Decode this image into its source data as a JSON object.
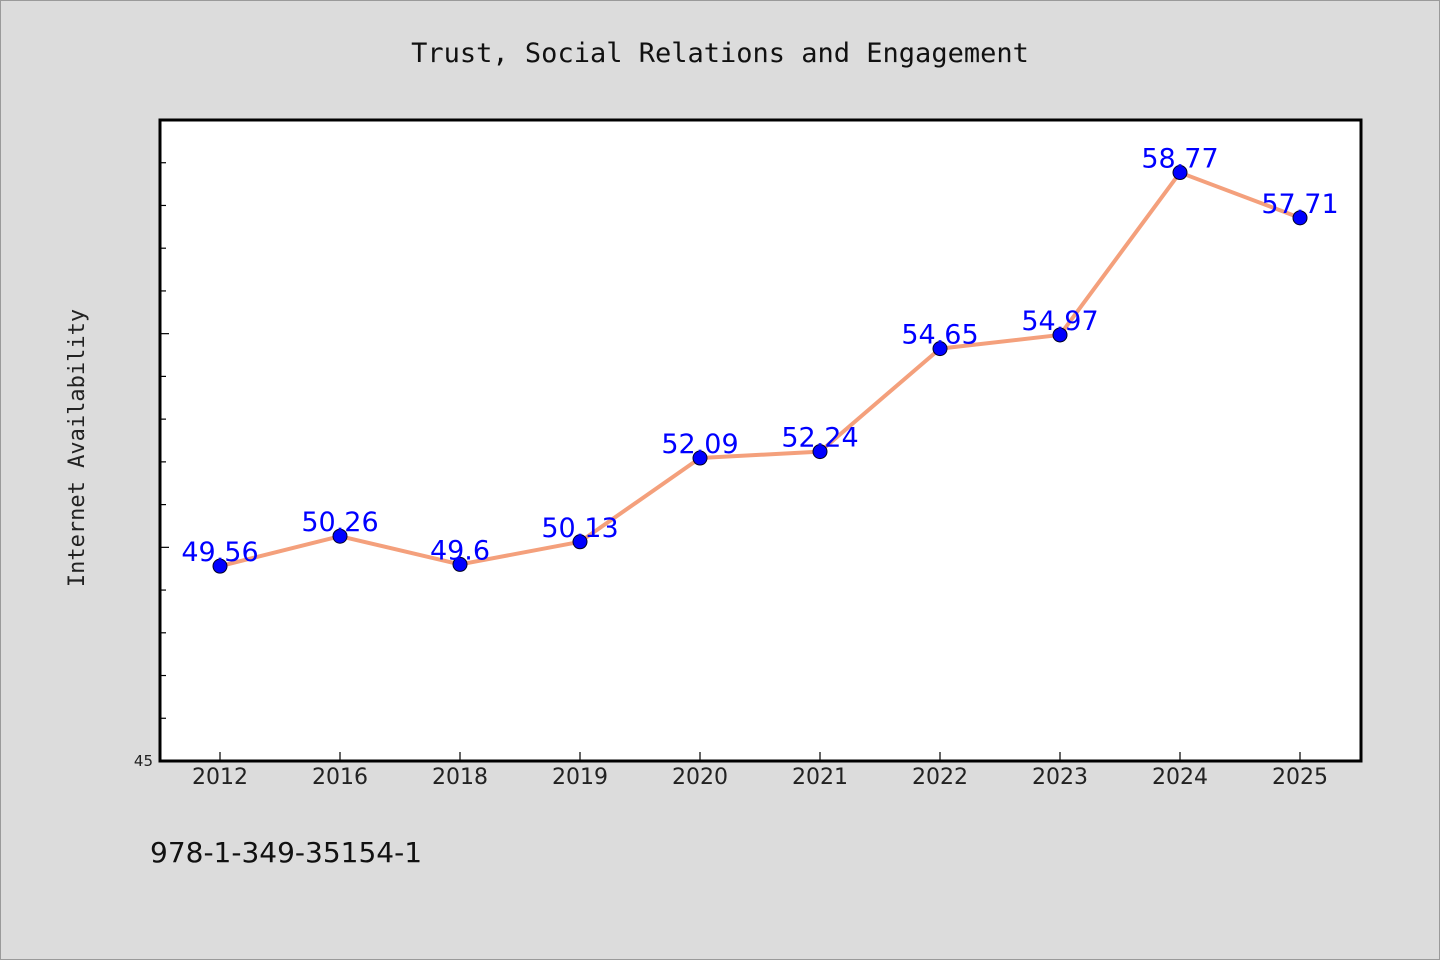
{
  "chart_data": {
    "type": "line",
    "title": "Trust, Social Relations and Engagement",
    "xlabel": "",
    "ylabel": "Internet Availability",
    "categories": [
      "2012",
      "2016",
      "2018",
      "2019",
      "2020",
      "2021",
      "2022",
      "2023",
      "2024",
      "2025"
    ],
    "series": [
      {
        "values": [
          49.56,
          50.26,
          49.6,
          50.13,
          52.09,
          52.24,
          54.65,
          54.97,
          58.77,
          57.71
        ],
        "labels": [
          "49.56",
          "50.26",
          "49.6",
          "50.13",
          "52.09",
          "52.24",
          "54.65",
          "54.97",
          "58.77",
          "57.71"
        ]
      }
    ],
    "ylim": [
      45,
      60
    ],
    "y_tick_labels": [
      "45"
    ],
    "grid": false,
    "legend": "none",
    "colors": {
      "line": "#f4a07c",
      "marker": "#0000ff",
      "data_label": "#0000ff",
      "background": "#dcdcdc",
      "plot_background": "#ffffff"
    }
  },
  "footer": {
    "isbn": "978-1-349-35154-1"
  }
}
